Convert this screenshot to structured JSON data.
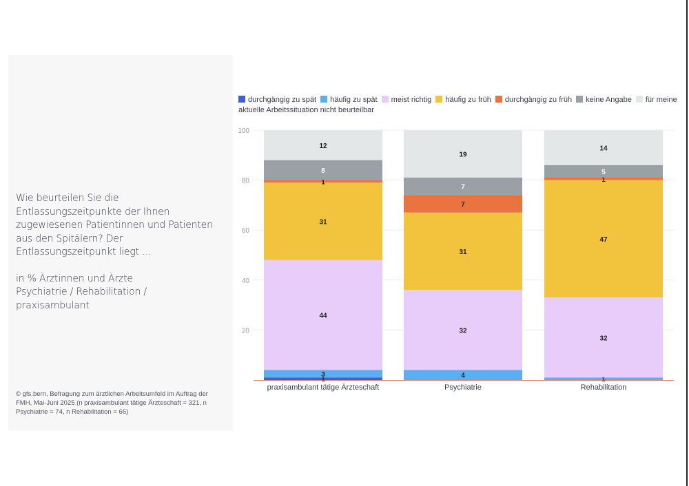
{
  "question": {
    "text": "Wie beurteilen Sie die Entlassungszeitpunkte der Ihnen zugewiesenen Patientinnen und Patienten aus den Spitälern? Der Entlassungszeitpunkt liegt …",
    "sub_line1": "in % Ärztinnen und Ärzte",
    "sub_line2": "Psychiatrie / Rehabilitation / praxisambulant"
  },
  "source": "© gfs.bern, Befragung zum ärztlichen Arbeitsumfeld im Auftrag der FMH, Mai-Juni 2025 (n praxisambulant tätige Ärzteschaft = 321, n Psychiatrie = 74, n Rehabilitation = 66)",
  "chart_data": {
    "type": "bar",
    "stacked": true,
    "categories": [
      "praxisambulant tätige Ärzteschaft",
      "Psychiatrie",
      "Rehabilitation"
    ],
    "series": [
      {
        "name": "durchgängig zu spät",
        "color": "#3f5fd4",
        "values": [
          1,
          0,
          0
        ]
      },
      {
        "name": "häufig zu spät",
        "color": "#5aaff0",
        "values": [
          3,
          4,
          1
        ]
      },
      {
        "name": "meist richtig",
        "color": "#e8cdfb",
        "values": [
          44,
          32,
          32
        ]
      },
      {
        "name": "häufig zu früh",
        "color": "#f2c43d",
        "values": [
          31,
          31,
          47
        ]
      },
      {
        "name": "durchgängig zu früh",
        "color": "#e9743f",
        "values": [
          1,
          7,
          1
        ]
      },
      {
        "name": "keine Angabe",
        "color": "#9aa1a6",
        "values": [
          8,
          7,
          5
        ]
      },
      {
        "name": "für meine aktuelle Arbeitssituation nicht beurteilbar",
        "color": "#e4e7e8",
        "values": [
          12,
          19,
          14
        ]
      }
    ],
    "ylim": [
      0,
      100
    ],
    "yticks": [
      20,
      40,
      60,
      80,
      100
    ],
    "grid": true,
    "legend": "top"
  }
}
